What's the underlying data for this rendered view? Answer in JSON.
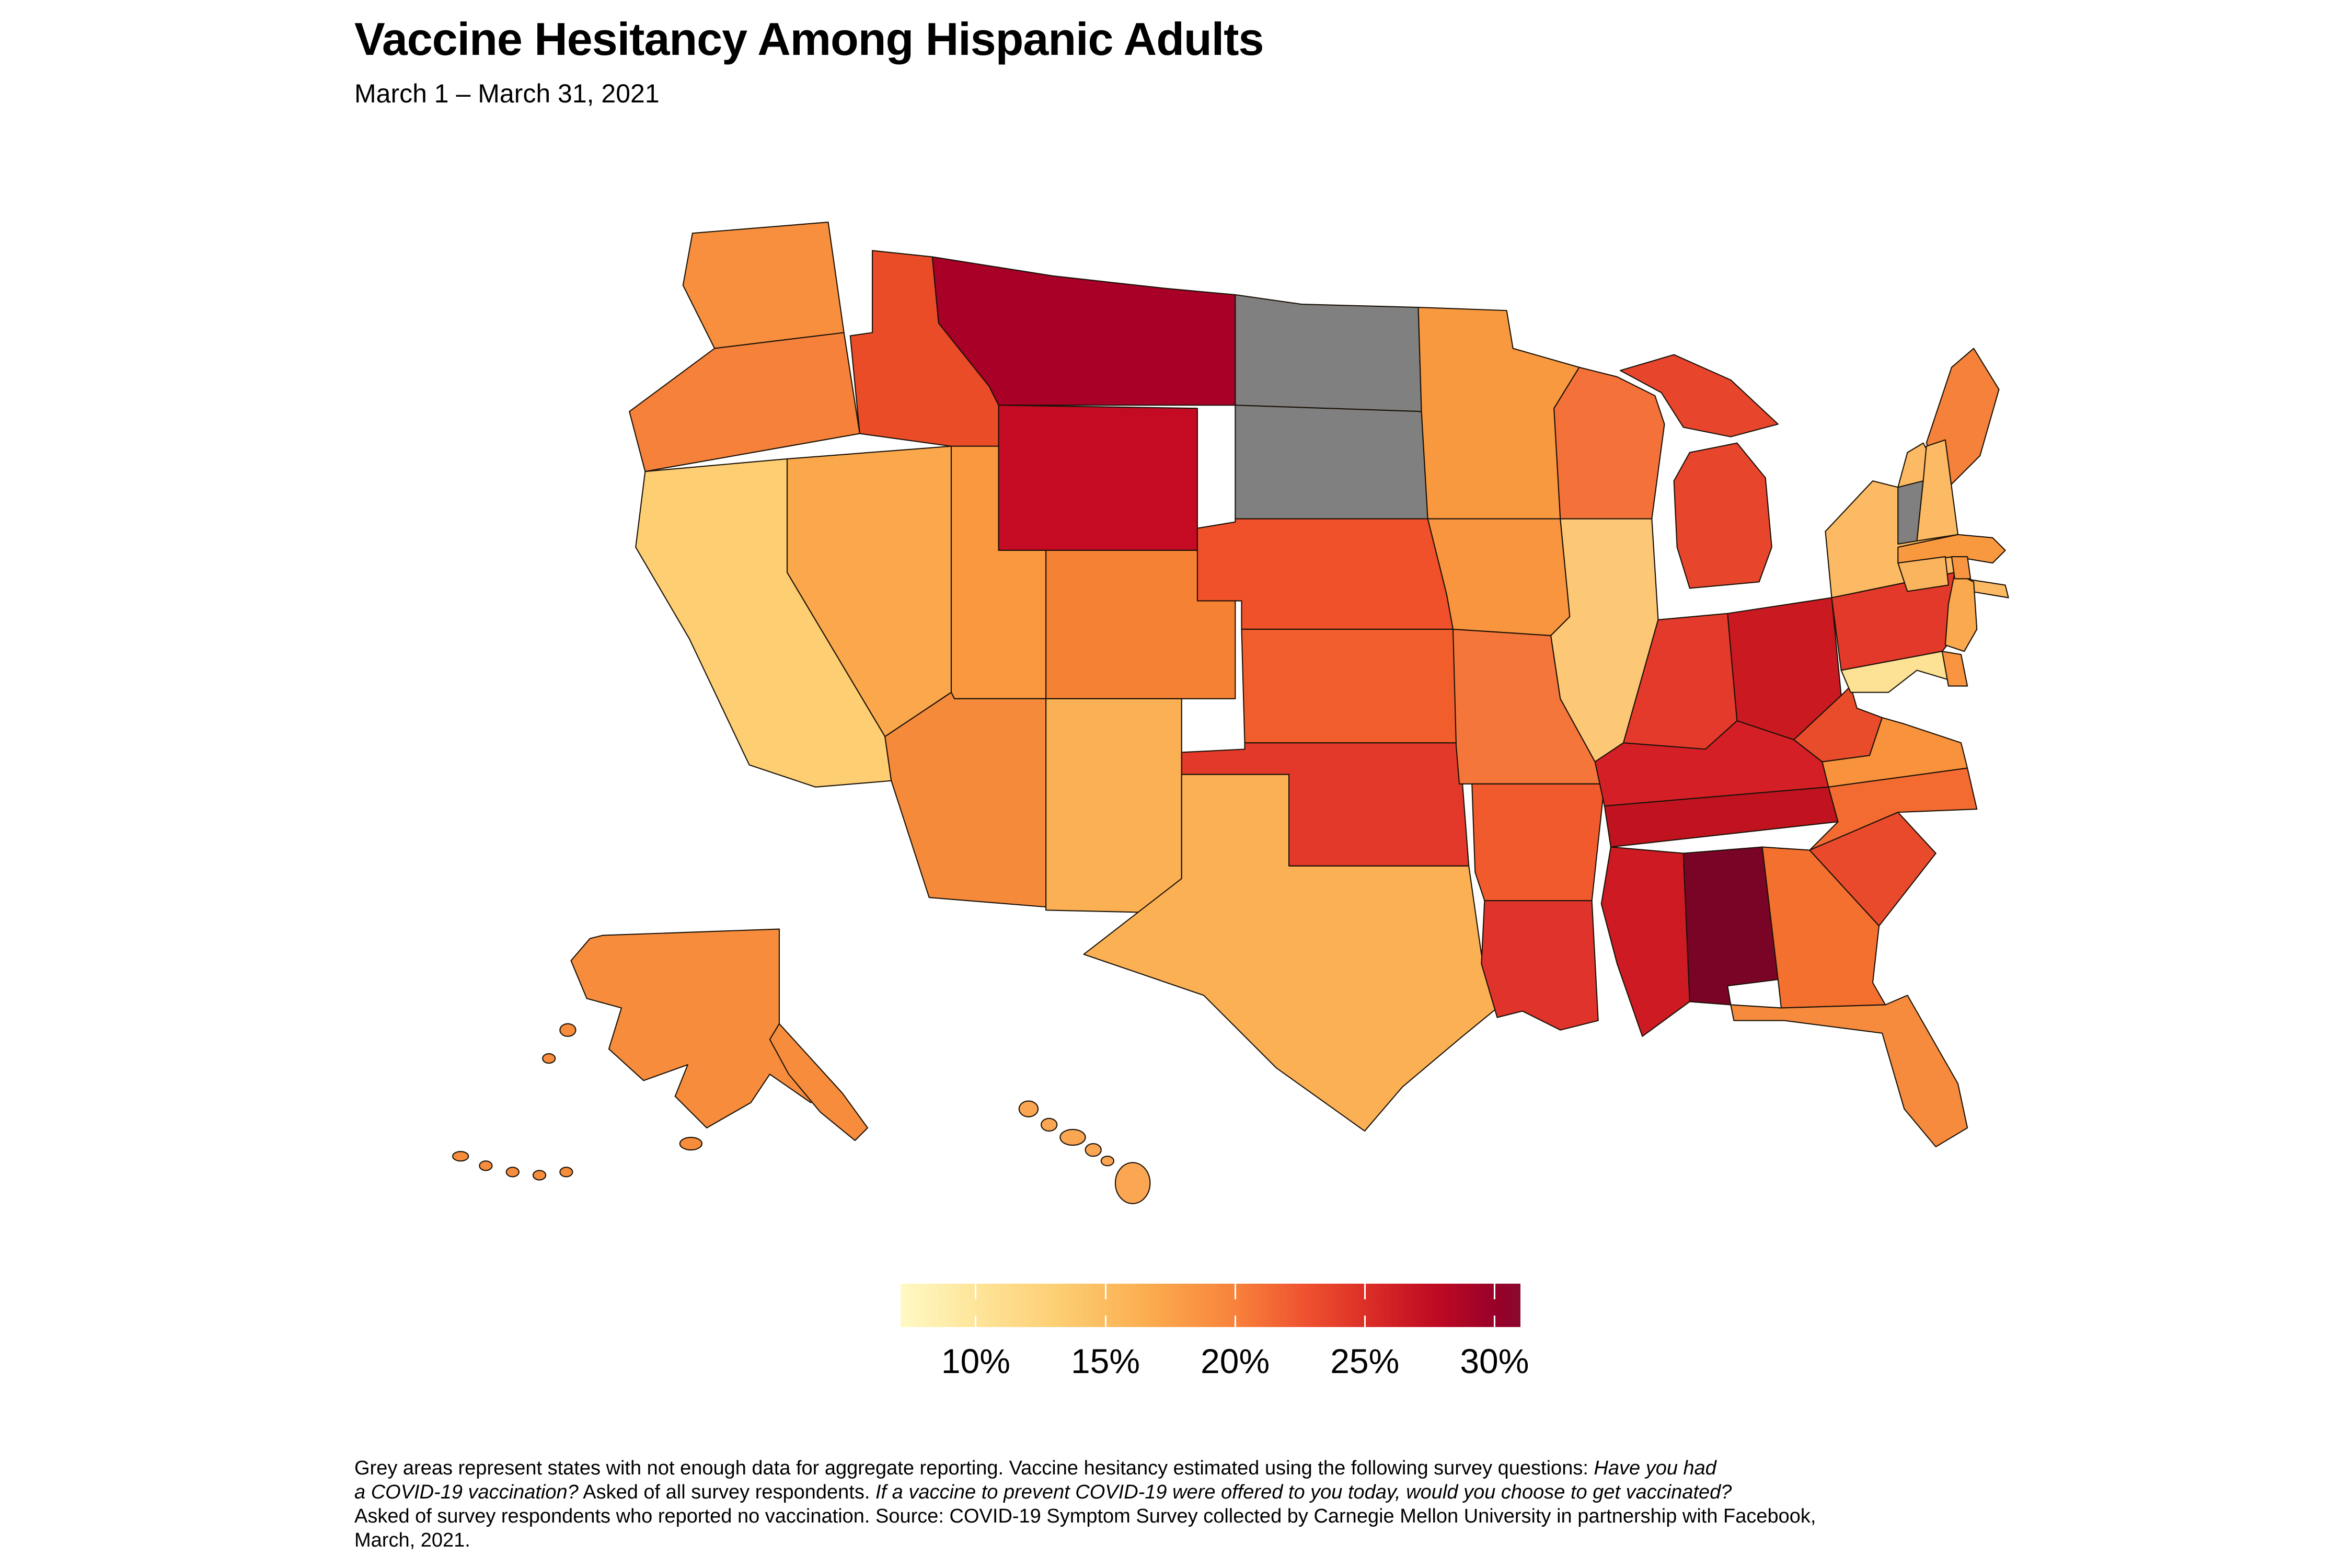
{
  "chart_data": {
    "type": "choropleth",
    "title": "Vaccine Hesitancy Among Hispanic Adults",
    "subtitle": "March 1 – March 31, 2021",
    "legend": {
      "tick_labels": [
        "10%",
        "15%",
        "20%",
        "25%",
        "30%"
      ],
      "tick_values": [
        10,
        15,
        20,
        25,
        30
      ],
      "range_pct": [
        7.1,
        31.0
      ],
      "gradient_stops": [
        [
          0,
          "#FFF9C5"
        ],
        [
          0.12,
          "#FEE59A"
        ],
        [
          0.25,
          "#FDCF74"
        ],
        [
          0.4,
          "#FBAC4E"
        ],
        [
          0.54,
          "#F8823B"
        ],
        [
          0.65,
          "#EF5330"
        ],
        [
          0.75,
          "#DC2F27"
        ],
        [
          0.86,
          "#C00B22"
        ],
        [
          0.96,
          "#98002A"
        ],
        [
          1,
          "#8A082C"
        ]
      ]
    },
    "no_data_color": "#808080",
    "no_data_states": [
      "North Dakota",
      "South Dakota",
      "Vermont"
    ],
    "states": [
      {
        "id": "WA",
        "name": "Washington",
        "color": "#F78F3E",
        "value_pct_est": 17
      },
      {
        "id": "OR",
        "name": "Oregon",
        "color": "#F5813A",
        "value_pct_est": 18
      },
      {
        "id": "CA",
        "name": "California",
        "color": "#FDCE72",
        "value_pct_est": 13.5
      },
      {
        "id": "NV",
        "name": "Nevada",
        "color": "#FBA84C",
        "value_pct_est": 15.5
      },
      {
        "id": "ID",
        "name": "Idaho",
        "color": "#EB4C28",
        "value_pct_est": 21
      },
      {
        "id": "MT",
        "name": "Montana",
        "color": "#A80026",
        "value_pct_est": 28
      },
      {
        "id": "WY",
        "name": "Wyoming",
        "color": "#C50A24",
        "value_pct_est": 25.5
      },
      {
        "id": "UT",
        "name": "Utah",
        "color": "#F9983F",
        "value_pct_est": 16.5
      },
      {
        "id": "CO",
        "name": "Colorado",
        "color": "#F58233",
        "value_pct_est": 18
      },
      {
        "id": "AZ",
        "name": "Arizona",
        "color": "#F58A3A",
        "value_pct_est": 17.5
      },
      {
        "id": "NM",
        "name": "New Mexico",
        "color": "#FBB054",
        "value_pct_est": 15
      },
      {
        "id": "ND",
        "name": "North Dakota",
        "color": "#808080",
        "value_pct_est": null
      },
      {
        "id": "SD",
        "name": "South Dakota",
        "color": "#808080",
        "value_pct_est": null
      },
      {
        "id": "NE",
        "name": "Nebraska",
        "color": "#F0512B",
        "value_pct_est": 20.5
      },
      {
        "id": "KS",
        "name": "Kansas",
        "color": "#F15E2C",
        "value_pct_est": 20
      },
      {
        "id": "OK",
        "name": "Oklahoma",
        "color": "#E3392A",
        "value_pct_est": 22
      },
      {
        "id": "TX",
        "name": "Texas",
        "color": "#FBB054",
        "value_pct_est": 15
      },
      {
        "id": "MN",
        "name": "Minnesota",
        "color": "#F9993F",
        "value_pct_est": 16.5
      },
      {
        "id": "IA",
        "name": "Iowa",
        "color": "#F9953F",
        "value_pct_est": 17
      },
      {
        "id": "MO",
        "name": "Missouri",
        "color": "#F4763B",
        "value_pct_est": 18.5
      },
      {
        "id": "AR",
        "name": "Arkansas",
        "color": "#F15A2D",
        "value_pct_est": 20
      },
      {
        "id": "LA",
        "name": "Louisiana",
        "color": "#DF332B",
        "value_pct_est": 22.5
      },
      {
        "id": "WI",
        "name": "Wisconsin",
        "color": "#F4713A",
        "value_pct_est": 19
      },
      {
        "id": "IL",
        "name": "Illinois",
        "color": "#FCC876",
        "value_pct_est": 14
      },
      {
        "id": "MS",
        "name": "Mississippi",
        "color": "#CE1A23",
        "value_pct_est": 24
      },
      {
        "id": "MI",
        "name": "Michigan",
        "color": "#E8452D",
        "value_pct_est": 21.5
      },
      {
        "id": "IN",
        "name": "Indiana",
        "color": "#E33A2B",
        "value_pct_est": 22
      },
      {
        "id": "OH",
        "name": "Ohio",
        "color": "#CB1922",
        "value_pct_est": 24.5
      },
      {
        "id": "KY",
        "name": "Kentucky",
        "color": "#D51F26",
        "value_pct_est": 23.5
      },
      {
        "id": "TN",
        "name": "Tennessee",
        "color": "#C0121F",
        "value_pct_est": 25.5
      },
      {
        "id": "AL",
        "name": "Alabama",
        "color": "#7A0425",
        "value_pct_est": 31
      },
      {
        "id": "WV",
        "name": "West Virginia",
        "color": "#E84C2B",
        "value_pct_est": 21
      },
      {
        "id": "VA",
        "name": "Virginia",
        "color": "#F9923D",
        "value_pct_est": 17
      },
      {
        "id": "NC",
        "name": "North Carolina",
        "color": "#F46B31",
        "value_pct_est": 19
      },
      {
        "id": "SC",
        "name": "South Carolina",
        "color": "#E94A2B",
        "value_pct_est": 21
      },
      {
        "id": "GA",
        "name": "Georgia",
        "color": "#F4702F",
        "value_pct_est": 19
      },
      {
        "id": "FL",
        "name": "Florida",
        "color": "#F68B3E",
        "value_pct_est": 17.5
      },
      {
        "id": "PA",
        "name": "Pennsylvania",
        "color": "#E3392A",
        "value_pct_est": 22
      },
      {
        "id": "NY",
        "name": "New York",
        "color": "#FBBA63",
        "value_pct_est": 14.5
      },
      {
        "id": "NJ",
        "name": "New Jersey",
        "color": "#FAA94F",
        "value_pct_est": 15.5
      },
      {
        "id": "ME",
        "name": "Maine",
        "color": "#F5813A",
        "value_pct_est": 18
      },
      {
        "id": "VT",
        "name": "Vermont",
        "color": "#808080",
        "value_pct_est": null
      },
      {
        "id": "NH",
        "name": "New Hampshire",
        "color": "#FBBA63",
        "value_pct_est": 14.5
      },
      {
        "id": "MA",
        "name": "Massachusetts",
        "color": "#F9993F",
        "value_pct_est": 16.5
      },
      {
        "id": "RI",
        "name": "Rhode Island",
        "color": "#F99440",
        "value_pct_est": 17
      },
      {
        "id": "CT",
        "name": "Connecticut",
        "color": "#FBB45E",
        "value_pct_est": 15
      },
      {
        "id": "MD",
        "name": "Maryland",
        "color": "#FDE194",
        "value_pct_est": 12
      },
      {
        "id": "DE",
        "name": "Delaware",
        "color": "#F99440",
        "value_pct_est": 17
      },
      {
        "id": "AK",
        "name": "Alaska",
        "color": "#F78C3C",
        "value_pct_est": 17.5
      },
      {
        "id": "HI",
        "name": "Hawaii",
        "color": "#FBA652",
        "value_pct_est": 15.5
      }
    ]
  },
  "footnote": {
    "lines": [
      [
        [
          "Grey areas represent states with not enough data for aggregate reporting. Vaccine hesitancy estimated using the following survey questions: ",
          false
        ],
        [
          "Have you had",
          true
        ]
      ],
      [
        [
          "a COVID-19 vaccination?",
          true
        ],
        [
          " Asked of all survey respondents. ",
          false
        ],
        [
          "If a vaccine to prevent COVID-19 were offered to you today, would you choose to get vaccinated?",
          true
        ]
      ],
      [
        [
          "Asked of survey respondents who reported no vaccination. Source: COVID-19 Symptom Survey collected by Carnegie Mellon University in partnership with Facebook,",
          false
        ]
      ],
      [
        [
          "March, 2021.",
          false
        ]
      ]
    ]
  }
}
